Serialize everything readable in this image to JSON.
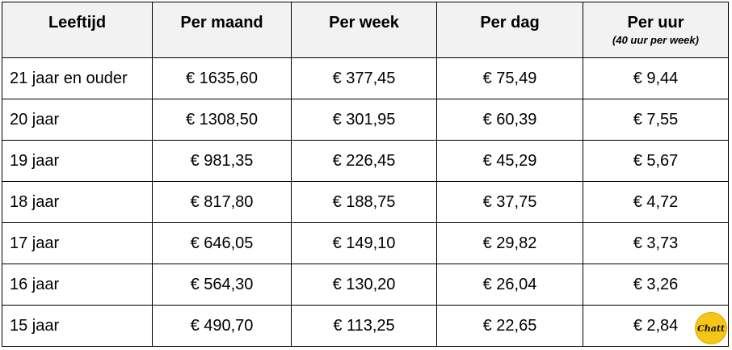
{
  "headers": {
    "age": "Leeftijd",
    "month": "Per maand",
    "week": "Per week",
    "day": "Per dag",
    "hour": "Per uur",
    "hour_note": "(40 uur per week)"
  },
  "rows": [
    {
      "age": "21 jaar en ouder",
      "month": "€ 1635,60",
      "week": "€ 377,45",
      "day": "€ 75,49",
      "hour": "€ 9,44"
    },
    {
      "age": "20 jaar",
      "month": "€ 1308,50",
      "week": "€ 301,95",
      "day": "€ 60,39",
      "hour": "€ 7,55"
    },
    {
      "age": "19 jaar",
      "month": "€ 981,35",
      "week": "€ 226,45",
      "day": "€ 45,29",
      "hour": "€ 5,67"
    },
    {
      "age": "18 jaar",
      "month": "€ 817,80",
      "week": "€ 188,75",
      "day": "€ 37,75",
      "hour": "€ 4,72"
    },
    {
      "age": "17 jaar",
      "month": "€ 646,05",
      "week": "€ 149,10",
      "day": "€ 29,82",
      "hour": "€ 3,73"
    },
    {
      "age": "16 jaar",
      "month": "€ 564,30",
      "week": "€ 130,20",
      "day": "€ 26,04",
      "hour": "€ 3,26"
    },
    {
      "age": "15 jaar",
      "month": "€ 490,70",
      "week": "€ 113,25",
      "day": "€ 22,65",
      "hour": "€ 2,84"
    }
  ],
  "logo": {
    "text": "Chatt",
    "color": "#f5c518"
  }
}
